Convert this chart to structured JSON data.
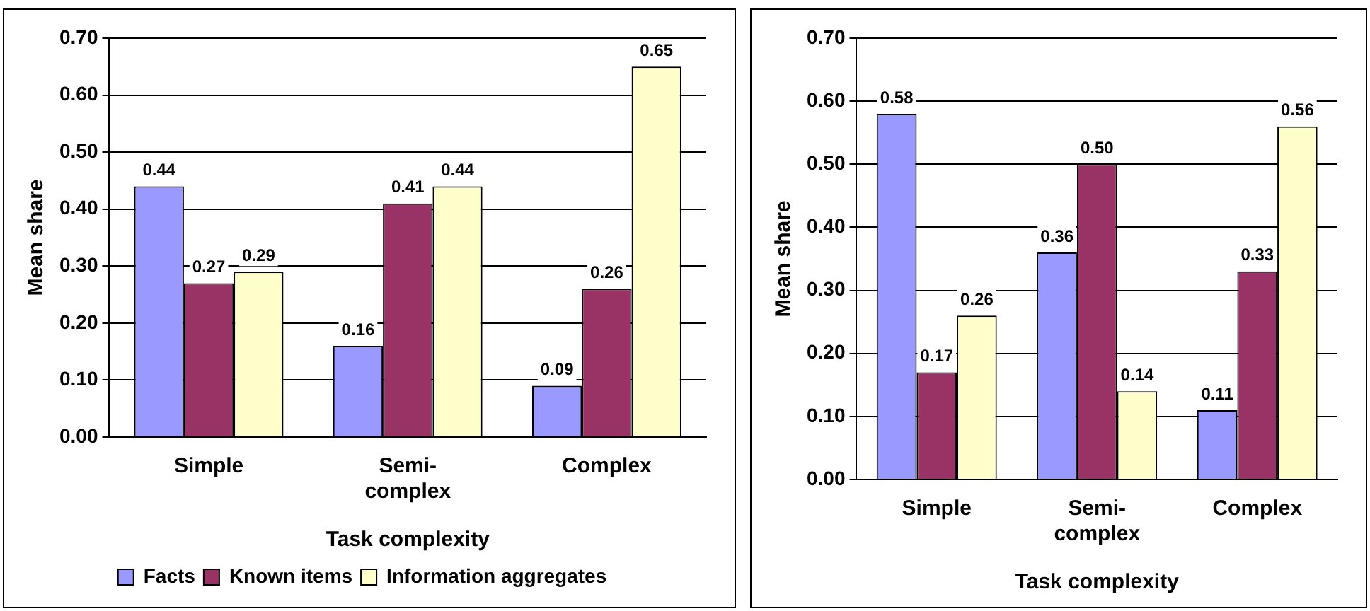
{
  "chart_data": [
    {
      "type": "bar",
      "xlabel": "Task complexity",
      "ylabel": "Mean share",
      "categories": [
        "Simple",
        "Semi-complex",
        "Complex"
      ],
      "series": [
        {
          "name": "Facts",
          "color": "#9999ff",
          "values": [
            0.44,
            0.16,
            0.09
          ],
          "value_labels": [
            "0.44",
            "0.16",
            "0.09"
          ]
        },
        {
          "name": "Known items",
          "color": "#993366",
          "values": [
            0.27,
            0.41,
            0.26
          ],
          "value_labels": [
            "0.27",
            "0.41",
            "0.26"
          ]
        },
        {
          "name": "Information aggregates",
          "color": "#ffffcc",
          "values": [
            0.29,
            0.44,
            0.65
          ],
          "value_labels": [
            "0.29",
            "0.44",
            "0.65"
          ]
        }
      ],
      "ylim": [
        0,
        0.7
      ],
      "yticks": [
        {
          "value": 0,
          "label": "0.00"
        },
        {
          "value": 0.1,
          "label": "0.10"
        },
        {
          "value": 0.2,
          "label": "0.20"
        },
        {
          "value": 0.3,
          "label": "0.30"
        },
        {
          "value": 0.4,
          "label": "0.40"
        },
        {
          "value": 0.5,
          "label": "0.50"
        },
        {
          "value": 0.6,
          "label": "0.60"
        },
        {
          "value": 0.7,
          "label": "0.70"
        }
      ],
      "grid": "y",
      "legend": "bottom"
    },
    {
      "type": "bar",
      "xlabel": "Task complexity",
      "ylabel": "Mean share",
      "categories": [
        "Simple",
        "Semi-complex",
        "Complex"
      ],
      "series": [
        {
          "color": "#9999ff",
          "values": [
            0.58,
            0.36,
            0.11
          ],
          "value_labels": [
            "0.58",
            "0.36",
            "0.11"
          ]
        },
        {
          "color": "#993366",
          "values": [
            0.17,
            0.5,
            0.33
          ],
          "value_labels": [
            "0.17",
            "0.50",
            "0.33"
          ]
        },
        {
          "color": "#ffffcc",
          "values": [
            0.26,
            0.14,
            0.56
          ],
          "value_labels": [
            "0.26",
            "0.14",
            "0.56"
          ]
        }
      ],
      "ylim": [
        0,
        0.7
      ],
      "yticks": [
        {
          "value": 0,
          "label": "0.00"
        },
        {
          "value": 0.1,
          "label": "0.10"
        },
        {
          "value": 0.2,
          "label": "0.20"
        },
        {
          "value": 0.3,
          "label": "0.30"
        },
        {
          "value": 0.4,
          "label": "0.40"
        },
        {
          "value": 0.5,
          "label": "0.50"
        },
        {
          "value": 0.6,
          "label": "0.60"
        },
        {
          "value": 0.7,
          "label": "0.70"
        }
      ],
      "grid": "y"
    }
  ]
}
